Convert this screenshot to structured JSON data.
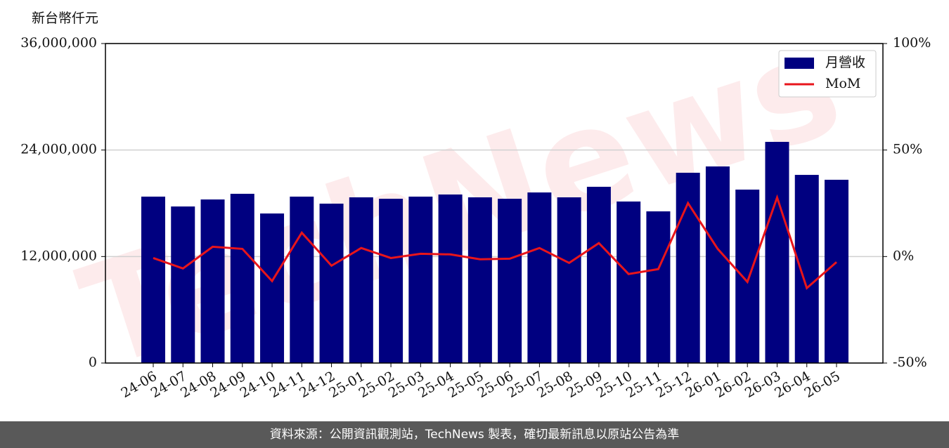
{
  "chart_data": {
    "type": "bar",
    "y_label": "新台幣仟元",
    "watermark": "TechNews",
    "categories": [
      "24-06",
      "24-07",
      "24-08",
      "24-09",
      "24-10",
      "24-11",
      "24-12",
      "25-01",
      "25-02",
      "25-03",
      "25-04",
      "25-05",
      "25-06",
      "25-07",
      "25-08",
      "25-09",
      "25-10",
      "25-11",
      "25-12",
      "26-01",
      "26-02",
      "26-03",
      "26-04",
      "26-05"
    ],
    "series": [
      {
        "name": "月營收",
        "type": "bar",
        "color": "#000080",
        "values": [
          18750000,
          17640000,
          18430000,
          19070000,
          16850000,
          18750000,
          17960000,
          18670000,
          18510000,
          18750000,
          18990000,
          18670000,
          18510000,
          19220000,
          18670000,
          19860000,
          18200000,
          17090000,
          21440000,
          22150000,
          19540000,
          24920000,
          21200000,
          20650000
        ]
      },
      {
        "name": "MoM",
        "type": "line",
        "axis": "y2",
        "color": "#e8151b",
        "values": [
          -0.7,
          -5.6,
          4.6,
          3.6,
          -11.5,
          11.2,
          -4.3,
          4.0,
          -0.7,
          1.3,
          1.0,
          -1.3,
          -1.0,
          4.0,
          -3.0,
          6.3,
          -8.2,
          -5.9,
          25.1,
          3.6,
          -11.9,
          27.7,
          -14.8,
          -2.6
        ]
      }
    ],
    "ylim": [
      0,
      36000000
    ],
    "yticks": [
      0,
      {
        "value": 12000000,
        "label": "12,000,000"
      },
      {
        "value": 24000000,
        "label": "24,000,000"
      },
      {
        "value": 36000000,
        "label": "36,000,000"
      }
    ],
    "y2lim": [
      -50,
      100
    ],
    "y2ticks": [
      {
        "value": -50,
        "label": "-50%"
      },
      {
        "value": 0,
        "label": "0%"
      },
      {
        "value": 50,
        "label": "50%"
      },
      {
        "value": 100,
        "label": "100%"
      }
    ],
    "grid": true,
    "legend": "upper right"
  },
  "footer": "資料來源：公開資訊觀測站，TechNews 製表，確切最新訊息以原站公告為準"
}
